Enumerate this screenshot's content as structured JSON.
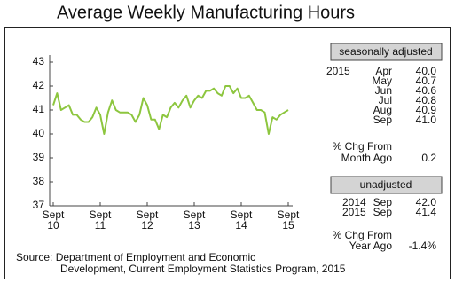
{
  "chart_data": {
    "type": "line",
    "title": "Average Weekly Manufacturing Hours",
    "categories": [
      "Sept 10",
      null,
      null,
      null,
      null,
      null,
      null,
      null,
      null,
      null,
      null,
      null,
      "Sept 11",
      null,
      null,
      null,
      null,
      null,
      null,
      null,
      null,
      null,
      null,
      null,
      "Sept 12",
      null,
      null,
      null,
      null,
      null,
      null,
      null,
      null,
      null,
      null,
      null,
      "Sept 13",
      null,
      null,
      null,
      null,
      null,
      null,
      null,
      null,
      null,
      null,
      null,
      "Sept 14",
      null,
      null,
      null,
      null,
      null,
      null,
      null,
      null,
      null,
      null,
      null,
      "Sept 15"
    ],
    "values": [
      41.2,
      41.7,
      41.0,
      41.1,
      41.2,
      40.8,
      40.8,
      40.6,
      40.5,
      40.5,
      40.7,
      41.1,
      40.8,
      40.0,
      40.9,
      41.4,
      41.0,
      40.9,
      40.9,
      40.9,
      40.8,
      40.5,
      40.8,
      41.5,
      41.2,
      40.6,
      40.6,
      40.2,
      40.8,
      40.7,
      41.1,
      41.3,
      41.1,
      41.4,
      41.6,
      41.1,
      41.4,
      41.6,
      41.5,
      41.8,
      41.8,
      41.9,
      41.7,
      41.6,
      42.0,
      42.0,
      41.7,
      41.9,
      41.5,
      41.5,
      41.6,
      41.3,
      41.0,
      41.0,
      40.9,
      40.0,
      40.7,
      40.6,
      40.8,
      40.9,
      41.0
    ],
    "color": "#8dc63f",
    "ylim": [
      37,
      43
    ],
    "yticks": [
      37,
      38,
      39,
      40,
      41,
      42,
      43
    ]
  },
  "panel": {
    "seasonally_adjusted": {
      "header": "seasonally adjusted",
      "year": "2015",
      "rows": [
        [
          "Apr",
          "40.0"
        ],
        [
          "May",
          "40.7"
        ],
        [
          "Jun",
          "40.6"
        ],
        [
          "Jul",
          "40.8"
        ],
        [
          "Aug",
          "40.9"
        ],
        [
          "Sep",
          "41.0"
        ]
      ],
      "change_label": [
        "% Chg From",
        "Month Ago"
      ],
      "change": "0.2"
    },
    "unadjusted": {
      "header": "unadjusted",
      "rows": [
        [
          "2014",
          "Sep",
          "42.0"
        ],
        [
          "2015",
          "Sep",
          "41.4"
        ]
      ],
      "change_label": [
        "% Chg From",
        "Year Ago"
      ],
      "change": "-1.4%"
    }
  },
  "source": [
    "Source: Department of Employment and Economic",
    "Development, Current Employment Statistics Program, 2015"
  ]
}
